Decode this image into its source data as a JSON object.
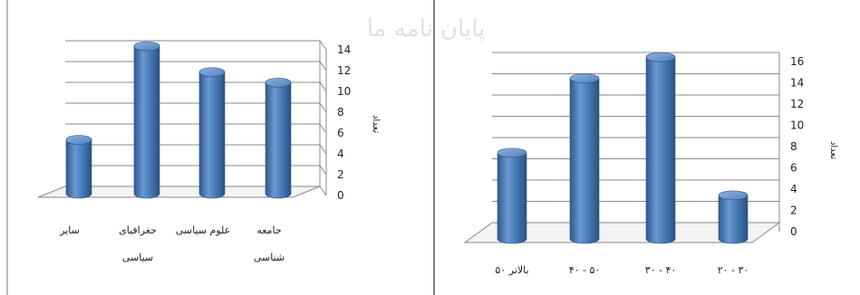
{
  "watermark": "پایان نامه ما",
  "chart_data": [
    {
      "type": "bar",
      "categories": [
        "سایر",
        "جغرافیای سیاسی",
        "علوم سیاسی",
        "جامعه شناسی"
      ],
      "category_lines": [
        [
          "سایر"
        ],
        [
          "جغرافیای",
          "سیاسی"
        ],
        [
          "علوم سیاسی"
        ],
        [
          "جامعه",
          "شناسی"
        ]
      ],
      "values": [
        5,
        14,
        11.5,
        10.5
      ],
      "ylabel": "تعداد",
      "ylim": [
        0,
        14
      ],
      "yticks": [
        "0",
        "2",
        "4",
        "6",
        "8",
        "10",
        "12",
        "14"
      ],
      "grid": true,
      "color": "#4a7ebb"
    },
    {
      "type": "bar",
      "categories": [
        "۵۰ بالاتر",
        "۴۰ - ۵۰",
        "۳۰ - ۴۰",
        "۲۰ - ۳۰"
      ],
      "category_lines": [
        [
          "۵۰ بالاتر"
        ],
        [
          "۴۰ - ۵۰"
        ],
        [
          "۳۰ - ۴۰"
        ],
        [
          "۲۰ - ۳۰"
        ]
      ],
      "values": [
        7.5,
        14.5,
        16.5,
        3.5
      ],
      "ylabel": "تعداد",
      "ylim": [
        0,
        16
      ],
      "yticks": [
        "0",
        "2",
        "4",
        "6",
        "8",
        "10",
        "12",
        "14",
        "16"
      ],
      "grid": true,
      "color": "#4a7ebb"
    }
  ]
}
